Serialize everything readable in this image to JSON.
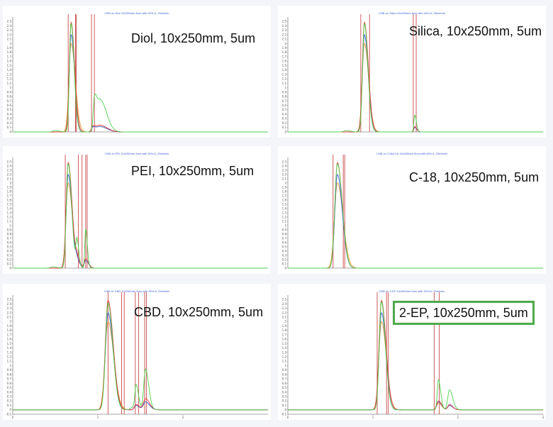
{
  "colors": {
    "green": "#4cd24c",
    "red": "#e23a3a",
    "blue": "#3f5fe0",
    "orange": "#f0a030",
    "marker": "#c84a4a",
    "axis": "#888888",
    "box_border": "#4fa94a"
  },
  "chart_data": [
    {
      "type": "line",
      "header": "CNB on Diol 10x250mm 5um with 30% A, 25ml/min",
      "label": "Diol, 10x250mm, 5um",
      "boxed": false,
      "xlim": [
        0,
        3.5
      ],
      "ylim": [
        0,
        2.6
      ],
      "yticks": [
        "0",
        "0.1",
        "0.2",
        "0.3",
        "0.4",
        "0.5",
        "0.6",
        "0.7",
        "0.8",
        "0.9",
        "1",
        "1.1",
        "1.2",
        "1.3",
        "1.4",
        "1.5",
        "1.6",
        "1.7",
        "1.8",
        "1.9",
        "2",
        "2.1",
        "2.2",
        "2.3",
        "2.4",
        "2.5"
      ],
      "xticks": [],
      "markers_x": [
        0.76,
        0.86,
        0.87,
        1.08,
        1.12
      ],
      "series": [
        {
          "color": "green",
          "peaks": [
            [
              0.8,
              2.45,
              0.022
            ],
            [
              1.12,
              0.68,
              0.016
            ],
            [
              1.2,
              0.72,
              0.045
            ],
            [
              0.58,
              0.03,
              0.03
            ]
          ]
        },
        {
          "color": "red",
          "peaks": [
            [
              0.8,
              2.48,
              0.025
            ],
            [
              1.1,
              0.12,
              0.02
            ],
            [
              1.2,
              0.15,
              0.05
            ]
          ]
        },
        {
          "color": "blue",
          "peaks": [
            [
              0.8,
              2.2,
              0.025
            ],
            [
              1.1,
              0.1,
              0.02
            ],
            [
              1.2,
              0.12,
              0.05
            ]
          ]
        },
        {
          "color": "orange",
          "peaks": [
            [
              0.8,
              2.0,
              0.03
            ],
            [
              1.1,
              0.1,
              0.02
            ],
            [
              1.2,
              0.12,
              0.05
            ]
          ]
        }
      ]
    },
    {
      "type": "line",
      "header": "CNB on Silica 10x250mm 5um with 30% A, 25ml/min",
      "label": "Silica, 10x250mm, 5um",
      "boxed": false,
      "xlim": [
        0,
        3.5
      ],
      "ylim": [
        0,
        2.6
      ],
      "yticks": [
        "0",
        "0.1",
        "0.2",
        "0.3",
        "0.4",
        "0.5",
        "0.6",
        "0.7",
        "0.8",
        "0.9",
        "1",
        "1.1",
        "1.2",
        "1.3",
        "1.4",
        "1.5",
        "1.6",
        "1.7",
        "1.8",
        "1.9",
        "2",
        "2.1",
        "2.2",
        "2.3",
        "2.4",
        "2.5"
      ],
      "xticks": [],
      "markers_x": [
        1.0,
        1.12,
        1.72,
        1.76
      ],
      "series": [
        {
          "color": "green",
          "peaks": [
            [
              1.05,
              2.45,
              0.025
            ],
            [
              1.74,
              0.38,
              0.012
            ],
            [
              0.8,
              0.03,
              0.03
            ]
          ]
        },
        {
          "color": "red",
          "peaks": [
            [
              1.05,
              2.48,
              0.028
            ],
            [
              1.74,
              0.12,
              0.015
            ]
          ]
        },
        {
          "color": "blue",
          "peaks": [
            [
              1.05,
              2.2,
              0.028
            ],
            [
              1.74,
              0.1,
              0.015
            ]
          ]
        },
        {
          "color": "orange",
          "peaks": [
            [
              1.05,
              2.0,
              0.03
            ],
            [
              1.74,
              0.1,
              0.015
            ]
          ]
        }
      ]
    },
    {
      "type": "line",
      "header": "CNB on PEI 10x250mm 5um with 30% A, 25ml/min",
      "label": "PEI, 10x250mm, 5um",
      "boxed": false,
      "xlim": [
        0,
        3.5
      ],
      "ylim": [
        0,
        2.6
      ],
      "yticks": [
        "0",
        "0.1",
        "0.2",
        "0.3",
        "0.4",
        "0.5",
        "0.6",
        "0.7",
        "0.8",
        "0.9",
        "1",
        "1.1",
        "1.2",
        "1.3",
        "1.4",
        "1.5",
        "1.6",
        "1.7",
        "1.8",
        "1.9",
        "2",
        "2.1",
        "2.2",
        "2.3",
        "2.4",
        "2.5"
      ],
      "xticks": [],
      "markers_x": [
        0.72,
        0.9,
        0.95,
        1.0,
        1.02
      ],
      "series": [
        {
          "color": "green",
          "peaks": [
            [
              0.76,
              2.45,
              0.025
            ],
            [
              0.88,
              0.62,
              0.014
            ],
            [
              1.0,
              0.92,
              0.012
            ],
            [
              0.55,
              0.03,
              0.03
            ]
          ]
        },
        {
          "color": "red",
          "peaks": [
            [
              0.76,
              2.48,
              0.028
            ],
            [
              0.88,
              0.2,
              0.02
            ],
            [
              1.0,
              0.22,
              0.02
            ]
          ]
        },
        {
          "color": "blue",
          "peaks": [
            [
              0.76,
              2.2,
              0.028
            ],
            [
              0.88,
              0.15,
              0.02
            ],
            [
              1.0,
              0.18,
              0.02
            ]
          ]
        },
        {
          "color": "orange",
          "peaks": [
            [
              0.76,
              2.0,
              0.03
            ],
            [
              0.88,
              0.15,
              0.02
            ],
            [
              1.0,
              0.18,
              0.02
            ]
          ]
        }
      ]
    },
    {
      "type": "line",
      "header": "CNB on C18(C18 10x250mm 5um with 30% A, 25ml/min",
      "label": "C-18, 10x250mm, 5um",
      "boxed": false,
      "xlim": [
        0,
        3.5
      ],
      "ylim": [
        0,
        2.6
      ],
      "yticks": [
        "0",
        "0.1",
        "0.2",
        "0.3",
        "0.4",
        "0.5",
        "0.6",
        "0.7",
        "0.8",
        "0.9",
        "1",
        "1.1",
        "1.2",
        "1.3",
        "1.4",
        "1.5",
        "1.6",
        "1.7",
        "1.8",
        "1.9",
        "2",
        "2.1",
        "2.2",
        "2.3",
        "2.4",
        "2.5"
      ],
      "xticks": [],
      "markers_x": [
        0.62,
        0.76,
        0.78
      ],
      "series": [
        {
          "color": "green",
          "peaks": [
            [
              0.68,
              2.45,
              0.035
            ]
          ]
        },
        {
          "color": "red",
          "peaks": [
            [
              0.68,
              2.48,
              0.035
            ]
          ]
        },
        {
          "color": "blue",
          "peaks": [
            [
              0.68,
              2.2,
              0.035
            ]
          ]
        },
        {
          "color": "orange",
          "peaks": [
            [
              0.68,
              2.0,
              0.04
            ]
          ]
        }
      ]
    },
    {
      "type": "line",
      "header": "CNB on CBD 10x250mm 5um with 30% A, 25ml/min",
      "label": "CBD, 10x250mm, 5um",
      "boxed": false,
      "xlim": [
        0,
        3.0
      ],
      "ylim": [
        -0.1,
        2.6
      ],
      "yticks": [
        "-0.1",
        "0",
        "0.1",
        "0.2",
        "0.3",
        "0.4",
        "0.5",
        "0.6",
        "0.7",
        "0.8",
        "0.9",
        "1",
        "1.1",
        "1.2",
        "1.3",
        "1.4",
        "1.5",
        "1.6",
        "1.7",
        "1.8",
        "1.9",
        "2",
        "2.1",
        "2.2",
        "2.3",
        "2.4",
        "2.5"
      ],
      "xticks": [
        "0",
        "1",
        "2"
      ],
      "markers_x": [
        1.12,
        1.28,
        1.31,
        1.44,
        1.48,
        1.55,
        1.57
      ],
      "series": [
        {
          "color": "green",
          "peaks": [
            [
              1.12,
              2.42,
              0.03
            ],
            [
              1.4,
              0.05,
              0.02
            ],
            [
              1.45,
              0.55,
              0.015
            ],
            [
              1.56,
              0.92,
              0.02
            ]
          ]
        },
        {
          "color": "red",
          "peaks": [
            [
              1.12,
              2.48,
              0.032
            ],
            [
              1.45,
              0.12,
              0.02
            ],
            [
              1.56,
              0.25,
              0.025
            ]
          ]
        },
        {
          "color": "blue",
          "peaks": [
            [
              1.12,
              2.2,
              0.032
            ],
            [
              1.45,
              0.1,
              0.02
            ],
            [
              1.56,
              0.18,
              0.025
            ]
          ]
        },
        {
          "color": "orange",
          "peaks": [
            [
              1.12,
              2.0,
              0.035
            ],
            [
              1.45,
              0.1,
              0.02
            ],
            [
              1.56,
              0.18,
              0.025
            ]
          ]
        }
      ]
    },
    {
      "type": "line",
      "header": "CNB on 2-EP 10x250mm 5um with 30% A, 25ml/min",
      "label": "2-EP, 10x250mm, 5um",
      "boxed": true,
      "xlim": [
        0,
        3.0
      ],
      "ylim": [
        -0.1,
        2.6
      ],
      "yticks": [
        "-0.1",
        "0",
        "0.1",
        "0.2",
        "0.3",
        "0.4",
        "0.5",
        "0.6",
        "0.7",
        "0.8",
        "0.9",
        "1",
        "1.1",
        "1.2",
        "1.3",
        "1.4",
        "1.5",
        "1.6",
        "1.7",
        "1.8",
        "1.9",
        "2",
        "2.1",
        "2.2",
        "2.3",
        "2.4",
        "2.5"
      ],
      "xticks": [
        "0",
        "1",
        "2",
        "3"
      ],
      "markers_x": [
        1.05,
        1.16,
        1.18,
        1.72,
        1.78
      ],
      "series": [
        {
          "color": "green",
          "peaks": [
            [
              1.1,
              2.45,
              0.025
            ],
            [
              1.77,
              0.68,
              0.014
            ],
            [
              1.9,
              0.45,
              0.02
            ]
          ]
        },
        {
          "color": "red",
          "peaks": [
            [
              1.1,
              2.48,
              0.028
            ],
            [
              1.77,
              0.2,
              0.02
            ],
            [
              1.9,
              0.12,
              0.02
            ]
          ]
        },
        {
          "color": "blue",
          "peaks": [
            [
              1.1,
              2.2,
              0.028
            ],
            [
              1.77,
              0.18,
              0.02
            ],
            [
              1.9,
              0.1,
              0.02
            ]
          ]
        },
        {
          "color": "orange",
          "peaks": [
            [
              1.1,
              2.0,
              0.03
            ],
            [
              1.77,
              0.15,
              0.02
            ],
            [
              1.9,
              0.1,
              0.02
            ]
          ]
        }
      ]
    }
  ]
}
